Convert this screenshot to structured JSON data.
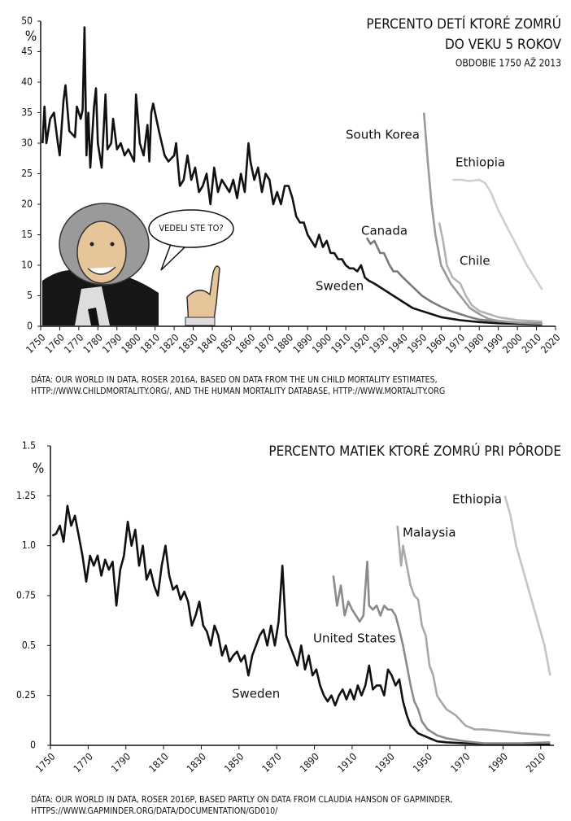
{
  "chart_data": [
    {
      "type": "line",
      "title": [
        "PERCENTO DETÍ KTORÉ ZOMRÚ",
        "DO VEKU 5 ROKOV"
      ],
      "subtitle": "OBDOBIE 1750 AŽ 2013",
      "y_label": "%",
      "annotation": "VEDELI STE TO?",
      "xlim": [
        1750,
        2020
      ],
      "ylim": [
        0,
        50
      ],
      "xticks": [
        1750,
        1760,
        1770,
        1780,
        1790,
        1800,
        1810,
        1820,
        1830,
        1840,
        1850,
        1860,
        1870,
        1880,
        1890,
        1900,
        1910,
        1920,
        1930,
        1940,
        1950,
        1960,
        1970,
        1980,
        1990,
        2000,
        2010,
        2020
      ],
      "yticks": [
        0,
        5,
        10,
        15,
        20,
        25,
        30,
        35,
        40,
        45,
        50
      ],
      "series": [
        {
          "name": "Sweden",
          "color": "#111111",
          "x": [
            1751,
            1752,
            1753,
            1755,
            1757,
            1759,
            1760,
            1762,
            1763,
            1765,
            1768,
            1769,
            1771,
            1772,
            1773,
            1774,
            1775,
            1776,
            1778,
            1779,
            1780,
            1782,
            1784,
            1785,
            1787,
            1788,
            1790,
            1792,
            1794,
            1796,
            1799,
            1800,
            1802,
            1804,
            1806,
            1807,
            1808,
            1809,
            1812,
            1815,
            1817,
            1820,
            1821,
            1823,
            1825,
            1827,
            1829,
            1831,
            1833,
            1835,
            1837,
            1839,
            1841,
            1843,
            1845,
            1847,
            1849,
            1851,
            1853,
            1855,
            1857,
            1859,
            1860,
            1862,
            1864,
            1866,
            1868,
            1870,
            1872,
            1874,
            1876,
            1878,
            1880,
            1882,
            1884,
            1886,
            1888,
            1890,
            1892,
            1894,
            1896,
            1898,
            1900,
            1902,
            1904,
            1906,
            1908,
            1910,
            1912,
            1914,
            1916,
            1918,
            1920,
            1922,
            1925,
            1930,
            1935,
            1940,
            1945,
            1950,
            1955,
            1960,
            1970,
            1980,
            1990,
            2000,
            2013
          ],
          "values": [
            30,
            36,
            30,
            34,
            35,
            30,
            28,
            37,
            39.5,
            32,
            31,
            36,
            34,
            35.5,
            49,
            28,
            35,
            26,
            36,
            39,
            30,
            26,
            38,
            29,
            30,
            34,
            29,
            30,
            28,
            29,
            27,
            38,
            30,
            28,
            33,
            27,
            35,
            36.5,
            32,
            28,
            27,
            28,
            30,
            23,
            24,
            28,
            24,
            26,
            22,
            23,
            25,
            20,
            26,
            22,
            24,
            23,
            22,
            24,
            21,
            25,
            22,
            30,
            27,
            24,
            26,
            22,
            25,
            24,
            20,
            22,
            20,
            23,
            23,
            21,
            18,
            17,
            17,
            15,
            14,
            13,
            15,
            13,
            14,
            12,
            12,
            11,
            11,
            10,
            9.5,
            9.5,
            9,
            10,
            8,
            7.5,
            7,
            6,
            5,
            4,
            3,
            2.5,
            2,
            1.5,
            1,
            0.7,
            0.5,
            0.4,
            0.3
          ]
        },
        {
          "name": "Canada",
          "color": "#7a7a7a",
          "x": [
            1921,
            1923,
            1925,
            1928,
            1930,
            1933,
            1935,
            1937,
            1940,
            1945,
            1950,
            1955,
            1960,
            1965,
            1970,
            1975,
            1980,
            1990,
            2000,
            2013
          ],
          "values": [
            14.5,
            13.5,
            14,
            12,
            12,
            10,
            9,
            9,
            8,
            6.5,
            5,
            4,
            3.2,
            2.5,
            2,
            1.5,
            1.1,
            0.8,
            0.6,
            0.5
          ]
        },
        {
          "name": "South Korea",
          "color": "#9a9a9a",
          "x": [
            1951,
            1953,
            1955,
            1957,
            1960,
            1965,
            1970,
            1975,
            1980,
            1985,
            1990,
            2000,
            2013
          ],
          "values": [
            35,
            27,
            20,
            15,
            10,
            7,
            5,
            3,
            2,
            1.2,
            0.9,
            0.6,
            0.4
          ]
        },
        {
          "name": "Ethiopia",
          "color": "#cfcfcf",
          "x": [
            1966,
            1970,
            1975,
            1980,
            1983,
            1986,
            1990,
            1995,
            2000,
            2005,
            2010,
            2013
          ],
          "values": [
            24,
            24,
            23.8,
            24,
            23.5,
            22,
            19,
            16,
            13,
            10,
            7.5,
            6
          ]
        },
        {
          "name": "Chile",
          "color": "#b3b3b3",
          "x": [
            1959,
            1961,
            1963,
            1966,
            1970,
            1973,
            1976,
            1980,
            1985,
            1990,
            2000,
            2013
          ],
          "values": [
            17,
            14,
            10,
            8,
            7,
            5,
            3.5,
            2.5,
            2,
            1.5,
            1,
            0.8
          ]
        }
      ],
      "source": [
        "DÁTA: OUR WORLD IN DATA, ROSER 2016A, BASED ON DATA FROM THE UN CHILD MORTALITY ESTIMATES,",
        "HTTP://WWW.CHILDMORTALITY.ORG/, AND THE HUMAN MORTALITY DATABASE, HTTP://WWW.MORTALITY.ORG"
      ]
    },
    {
      "type": "line",
      "title": [
        "PERCENTO MATIEK KTORÉ ZOMRÚ PRI PÔRODE"
      ],
      "y_label": "%",
      "xlim": [
        1750,
        2017
      ],
      "ylim": [
        0,
        1.5
      ],
      "xticks": [
        1750,
        1770,
        1790,
        1810,
        1830,
        1850,
        1870,
        1890,
        1910,
        1930,
        1950,
        1970,
        1990,
        2010
      ],
      "yticks": [
        0,
        0.25,
        0.5,
        0.75,
        {
          "value": 1,
          "label": "1.0"
        },
        1.25,
        1.5
      ],
      "series": [
        {
          "name": "Sweden",
          "color": "#111111",
          "x": [
            1751,
            1753,
            1755,
            1757,
            1759,
            1761,
            1763,
            1765,
            1767,
            1769,
            1771,
            1773,
            1775,
            1777,
            1779,
            1781,
            1783,
            1785,
            1787,
            1789,
            1791,
            1793,
            1795,
            1797,
            1799,
            1801,
            1803,
            1805,
            1807,
            1809,
            1811,
            1813,
            1815,
            1817,
            1819,
            1821,
            1823,
            1825,
            1827,
            1829,
            1831,
            1833,
            1835,
            1837,
            1839,
            1841,
            1843,
            1845,
            1847,
            1849,
            1851,
            1853,
            1855,
            1857,
            1859,
            1861,
            1863,
            1865,
            1867,
            1869,
            1871,
            1873,
            1875,
            1877,
            1879,
            1881,
            1883,
            1885,
            1887,
            1889,
            1891,
            1893,
            1895,
            1897,
            1899,
            1901,
            1903,
            1905,
            1907,
            1909,
            1911,
            1913,
            1915,
            1917,
            1919,
            1921,
            1923,
            1925,
            1927,
            1929,
            1931,
            1933,
            1935,
            1937,
            1939,
            1941,
            1943,
            1945,
            1950,
            1955,
            1960,
            1970,
            1990,
            2015
          ],
          "values": [
            1.05,
            1.06,
            1.1,
            1.02,
            1.2,
            1.1,
            1.15,
            1.05,
            0.95,
            0.82,
            0.95,
            0.9,
            0.95,
            0.85,
            0.93,
            0.88,
            0.92,
            0.7,
            0.88,
            0.95,
            1.12,
            1.0,
            1.08,
            0.9,
            1.0,
            0.83,
            0.88,
            0.8,
            0.75,
            0.9,
            1.0,
            0.85,
            0.78,
            0.8,
            0.73,
            0.77,
            0.72,
            0.6,
            0.65,
            0.72,
            0.6,
            0.57,
            0.5,
            0.6,
            0.55,
            0.45,
            0.5,
            0.42,
            0.45,
            0.47,
            0.42,
            0.45,
            0.35,
            0.45,
            0.5,
            0.55,
            0.58,
            0.5,
            0.6,
            0.5,
            0.62,
            0.9,
            0.55,
            0.5,
            0.45,
            0.4,
            0.5,
            0.38,
            0.45,
            0.35,
            0.38,
            0.3,
            0.25,
            0.22,
            0.25,
            0.2,
            0.25,
            0.28,
            0.23,
            0.28,
            0.23,
            0.3,
            0.25,
            0.3,
            0.4,
            0.28,
            0.3,
            0.3,
            0.25,
            0.38,
            0.35,
            0.3,
            0.33,
            0.22,
            0.15,
            0.1,
            0.08,
            0.06,
            0.04,
            0.02,
            0.015,
            0.01,
            0.005,
            0.004
          ]
        },
        {
          "name": "United States",
          "color": "#8a8a8a",
          "x": [
            1900,
            1902,
            1904,
            1906,
            1908,
            1910,
            1912,
            1914,
            1916,
            1918,
            1919,
            1921,
            1923,
            1925,
            1927,
            1929,
            1931,
            1933,
            1935,
            1937,
            1939,
            1941,
            1943,
            1945,
            1947,
            1950,
            1955,
            1960,
            1970,
            1980,
            2000,
            2015
          ],
          "values": [
            0.85,
            0.7,
            0.8,
            0.65,
            0.72,
            0.68,
            0.65,
            0.62,
            0.65,
            0.92,
            0.7,
            0.68,
            0.7,
            0.65,
            0.7,
            0.68,
            0.68,
            0.65,
            0.58,
            0.5,
            0.4,
            0.3,
            0.22,
            0.18,
            0.12,
            0.08,
            0.05,
            0.035,
            0.02,
            0.01,
            0.01,
            0.015
          ]
        },
        {
          "name": "Malaysia",
          "color": "#a8a8a8",
          "x": [
            1934,
            1936,
            1937,
            1939,
            1941,
            1943,
            1945,
            1947,
            1949,
            1951,
            1953,
            1955,
            1957,
            1960,
            1965,
            1970,
            1975,
            1980,
            1990,
            2000,
            2015
          ],
          "values": [
            1.1,
            0.9,
            1.0,
            0.9,
            0.8,
            0.75,
            0.73,
            0.6,
            0.55,
            0.4,
            0.35,
            0.25,
            0.22,
            0.18,
            0.15,
            0.1,
            0.08,
            0.08,
            0.07,
            0.06,
            0.05
          ]
        },
        {
          "name": "Ethiopia",
          "color": "#c4c4c4",
          "x": [
            1991,
            1994,
            1997,
            2000,
            2003,
            2006,
            2009,
            2012,
            2015
          ],
          "values": [
            1.25,
            1.15,
            1.0,
            0.9,
            0.8,
            0.7,
            0.6,
            0.5,
            0.35
          ]
        }
      ],
      "source": [
        "DÁTA: OUR WORLD IN DATA, ROSER 2016P, BASED PARTLY ON DATA FROM CLAUDIA HANSON OF GAPMINDER,",
        "HTTPS://WWW.GAPMINDER.ORG/DATA/DOCUMENTATION/GD010/"
      ]
    }
  ]
}
